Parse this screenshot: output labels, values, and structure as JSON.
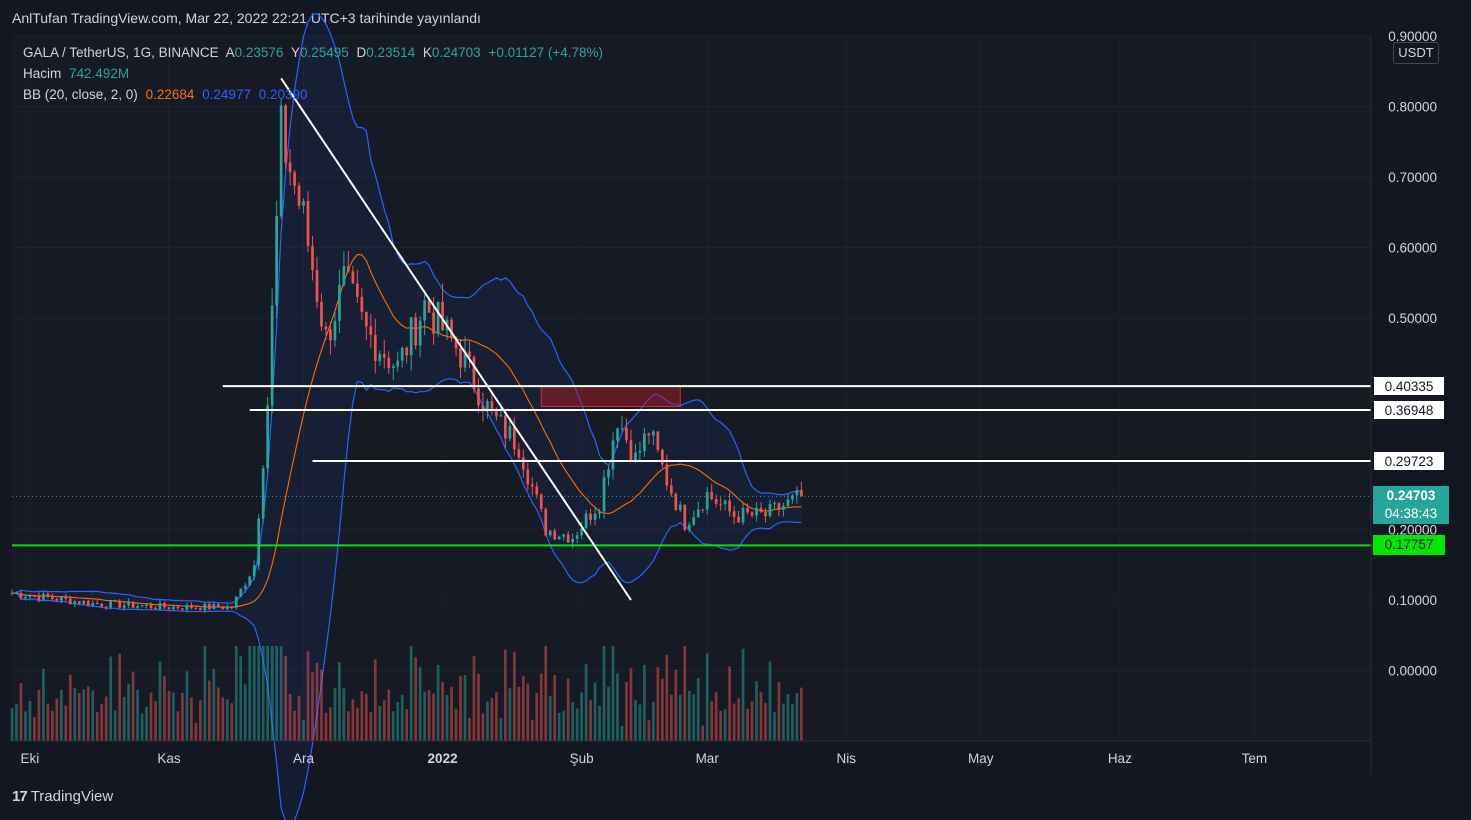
{
  "publish_note": "AnlTufan TradingView.com, Mar 22, 2022 22:21 UTC+3 tarihinde yayınlandı",
  "legend": {
    "symbol": "GALA / TetherUS, 1G, BINANCE",
    "open_key": "A",
    "open": "0.23576",
    "high_key": "Y",
    "high": "0.25495",
    "low_key": "D",
    "low": "0.23514",
    "close_key": "K",
    "close": "0.24703",
    "change": "+0.01127 (+4.78%)",
    "volume_label": "Hacim",
    "volume": "742.492M",
    "bb_label": "BB (20, close, 2, 0)",
    "bb_basis": "0.22684",
    "bb_upper": "0.24977",
    "bb_lower": "0.20390"
  },
  "currency": "USDT",
  "badges": {
    "line1": "0.40335",
    "line2": "0.36948",
    "line3": "0.29723",
    "current": "0.24703",
    "countdown": "04:38:43",
    "support": "0.17757"
  },
  "footer": {
    "logo_mark": "17",
    "logo_text": "TradingView"
  },
  "colors": {
    "background": "#131722",
    "up": "#26a69a",
    "down": "#ef5350",
    "bb_band": "#2962ff",
    "bb_basis": "#ff6d00",
    "support_line": "#00e600",
    "resistance_zone": "#b71c1c"
  },
  "chart_data": {
    "type": "candlestick",
    "y_axis": {
      "ticks": [
        "0.90000",
        "0.80000",
        "0.70000",
        "0.60000",
        "0.50000",
        "0.20000",
        "0.10000",
        "0.00000"
      ],
      "tick_values": [
        0.9,
        0.8,
        0.7,
        0.6,
        0.5,
        0.2,
        0.1,
        0.0
      ],
      "range": [
        -0.1,
        0.9
      ]
    },
    "x_axis": {
      "ticks": [
        "Eki",
        "Kas",
        "Ara",
        "2022",
        "Şub",
        "Mar",
        "Nis",
        "May",
        "Haz",
        "Tem"
      ],
      "tick_dates": [
        "2021-10-01",
        "2021-11-01",
        "2021-12-01",
        "2022-01-01",
        "2022-02-01",
        "2022-03-01",
        "2022-04-01",
        "2022-05-01",
        "2022-06-01",
        "2022-07-01"
      ],
      "range": [
        "2021-09-27",
        "2022-07-27"
      ]
    },
    "key_points": [
      {
        "date": "2021-09-27",
        "close": 0.11
      },
      {
        "date": "2021-10-15",
        "close": 0.095
      },
      {
        "date": "2021-11-01",
        "close": 0.09
      },
      {
        "date": "2021-11-15",
        "close": 0.09
      },
      {
        "date": "2021-11-20",
        "close": 0.15
      },
      {
        "date": "2021-11-23",
        "close": 0.38
      },
      {
        "date": "2021-11-26",
        "close": 0.76
      },
      {
        "date": "2021-12-01",
        "close": 0.64
      },
      {
        "date": "2021-12-06",
        "close": 0.47
      },
      {
        "date": "2021-12-10",
        "close": 0.55
      },
      {
        "date": "2021-12-15",
        "close": 0.48
      },
      {
        "date": "2021-12-22",
        "close": 0.43
      },
      {
        "date": "2021-12-28",
        "close": 0.52
      },
      {
        "date": "2022-01-05",
        "close": 0.45
      },
      {
        "date": "2022-01-12",
        "close": 0.36
      },
      {
        "date": "2022-01-18",
        "close": 0.32
      },
      {
        "date": "2022-01-24",
        "close": 0.2
      },
      {
        "date": "2022-01-30",
        "close": 0.19
      },
      {
        "date": "2022-02-05",
        "close": 0.24
      },
      {
        "date": "2022-02-09",
        "close": 0.36
      },
      {
        "date": "2022-02-13",
        "close": 0.3
      },
      {
        "date": "2022-02-16",
        "close": 0.34
      },
      {
        "date": "2022-02-20",
        "close": 0.27
      },
      {
        "date": "2022-02-24",
        "close": 0.21
      },
      {
        "date": "2022-03-01",
        "close": 0.25
      },
      {
        "date": "2022-03-07",
        "close": 0.22
      },
      {
        "date": "2022-03-14",
        "close": 0.22
      },
      {
        "date": "2022-03-22",
        "close": 0.24703
      }
    ],
    "horizontal_levels": [
      0.40335,
      0.36948,
      0.29723,
      0.17757
    ],
    "resistance_zone": {
      "from_date": "2022-01-23",
      "to_date": "2022-02-23",
      "low": 0.3745,
      "high": 0.4035
    },
    "trendline": {
      "from": {
        "date": "2021-11-26",
        "price": 0.84
      },
      "to": {
        "date": "2022-02-12",
        "price": 0.1
      }
    }
  }
}
